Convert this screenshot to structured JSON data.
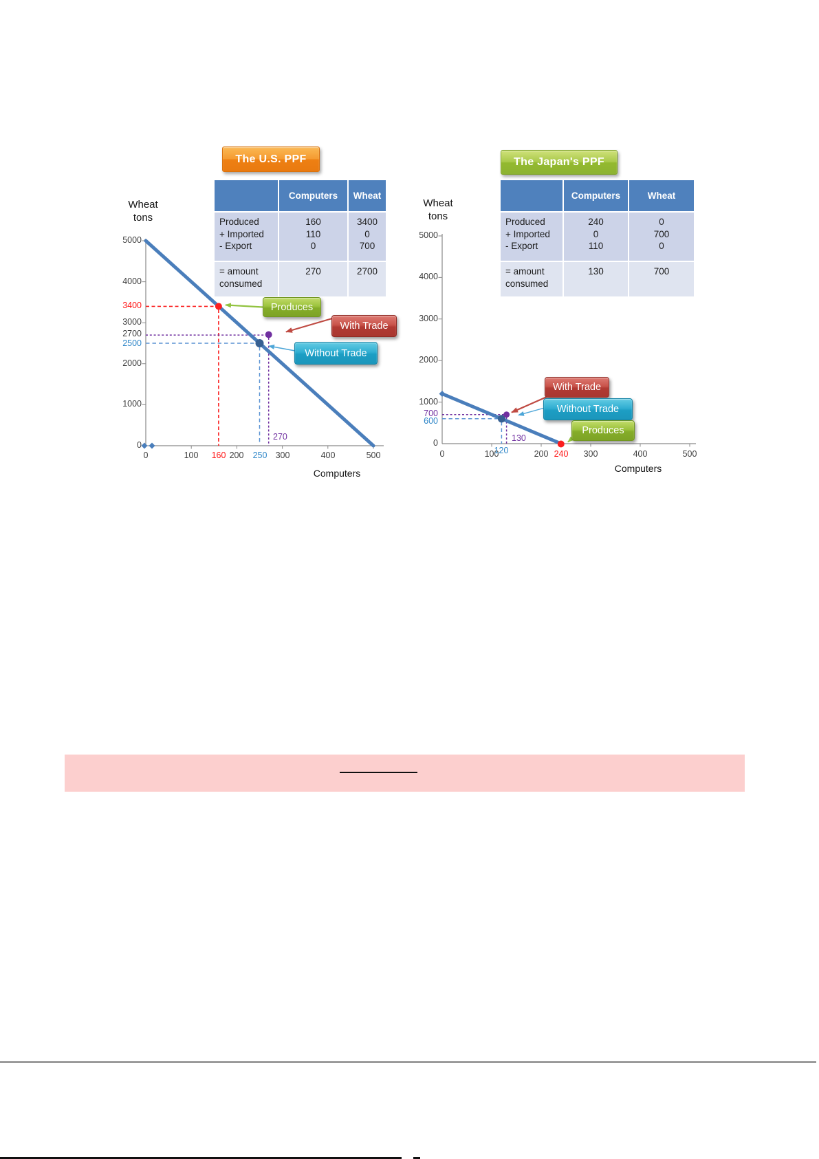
{
  "colors": {
    "ppf_line": "#4a7ebb",
    "table_header_bg": "#4f81bd",
    "table_row1_bg": "#ccd3e8",
    "table_row2_bg": "#dfe4f0",
    "red_accent": "#ff1414",
    "purple_accent": "#7030a0",
    "blue_label": "#2e86c8",
    "us_title_orange": "#ee8013",
    "japan_title_green": "#93b92f",
    "produces_green": "#85ad29",
    "with_trade_red": "#b13a33",
    "without_trade_cyan": "#1d9ec4",
    "highlight_band_pink": "#fccfce"
  },
  "us": {
    "title": "The U.S. PPF",
    "y_axis_title": "Wheat tons",
    "x_axis_title": "Computers",
    "table": {
      "header_computers": "Computers",
      "header_wheat": "Wheat",
      "produced_label": "Produced",
      "imported_label": "+ Imported",
      "export_label": "- Export",
      "produced_computers": "160",
      "imported_computers": "110",
      "export_computers": "0",
      "produced_wheat": "3400",
      "imported_wheat": "0",
      "export_wheat": "700",
      "consumed_label": "= amount consumed",
      "consumed_computers": "270",
      "consumed_wheat": "2700"
    },
    "callouts": {
      "produces": "Produces",
      "with_trade": "With Trade",
      "without_trade": "Without Trade"
    },
    "guide_labels": {
      "with_trade_x": "270"
    },
    "y_ticks": [
      {
        "v": 5000
      },
      {
        "v": 4000
      },
      {
        "v": 3400,
        "c": "red"
      },
      {
        "v": 3000
      },
      {
        "v": 2700,
        "dy": -1
      },
      {
        "v": 2500,
        "c": "blue",
        "dy": 1
      },
      {
        "v": 2000
      },
      {
        "v": 1000
      },
      {
        "v": 0
      }
    ],
    "x_ticks": [
      {
        "v": 0
      },
      {
        "v": 100
      },
      {
        "v": 160,
        "c": "red"
      },
      {
        "v": 200
      },
      {
        "v": 250,
        "c": "blue"
      },
      {
        "v": 300
      },
      {
        "v": 400
      },
      {
        "v": 500
      }
    ]
  },
  "japan": {
    "title": "The Japan's  PPF",
    "y_axis_title": "Wheat tons",
    "x_axis_title": "Computers",
    "table": {
      "header_computers": "Computers",
      "header_wheat": "Wheat",
      "produced_label": "Produced",
      "imported_label": "+ Imported",
      "export_label": "- Export",
      "produced_computers": "240",
      "imported_computers": "0",
      "export_computers": "110",
      "produced_wheat": "0",
      "imported_wheat": "700",
      "export_wheat": "0",
      "consumed_label": "= amount consumed",
      "consumed_computers": "130",
      "consumed_wheat": "700"
    },
    "callouts": {
      "produces": "Produces",
      "with_trade": "With Trade",
      "without_trade": "Without Trade"
    },
    "guide_labels": {
      "without_trade_x": "120",
      "with_trade_x": "130"
    },
    "y_ticks": [
      {
        "v": 5000
      },
      {
        "v": 4000
      },
      {
        "v": 3000
      },
      {
        "v": 2000
      },
      {
        "v": 1000
      },
      {
        "v": 700,
        "c": "purple",
        "dy": -1
      },
      {
        "v": 600,
        "c": "blue",
        "dy": 4
      },
      {
        "v": 0
      }
    ],
    "x_ticks": [
      {
        "v": 0
      },
      {
        "v": 100
      },
      {
        "v": 200
      },
      {
        "v": 240,
        "c": "red"
      },
      {
        "v": 300
      },
      {
        "v": 400
      },
      {
        "v": 500
      }
    ]
  },
  "chart_data": [
    {
      "type": "line",
      "title": "The U.S. PPF",
      "xlabel": "Computers",
      "ylabel": "Wheat tons",
      "xlim": [
        0,
        500
      ],
      "ylim": [
        0,
        5000
      ],
      "grid": false,
      "series": [
        {
          "name": "US PPF frontier",
          "points": [
            [
              0,
              5000
            ],
            [
              500,
              0
            ]
          ]
        }
      ],
      "markers": [
        {
          "name": "Produces",
          "x": 160,
          "y": 3400,
          "color": "red"
        },
        {
          "name": "Without Trade",
          "x": 250,
          "y": 2500,
          "color": "blue"
        },
        {
          "name": "With Trade",
          "x": 270,
          "y": 2700,
          "color": "purple"
        },
        {
          "name": "origin markers",
          "points": [
            [
              0,
              0
            ],
            [
              14,
              0
            ]
          ],
          "color": "blue"
        }
      ],
      "table": {
        "columns": [
          "",
          "Computers",
          "Wheat"
        ],
        "rows": [
          [
            "Produced",
            160,
            3400
          ],
          [
            "+ Imported",
            110,
            0
          ],
          [
            "- Export",
            0,
            700
          ],
          [
            "= amount consumed",
            270,
            2700
          ]
        ]
      }
    },
    {
      "type": "line",
      "title": "The Japan's PPF",
      "xlabel": "Computers",
      "ylabel": "Wheat tons",
      "xlim": [
        0,
        500
      ],
      "ylim": [
        0,
        5000
      ],
      "grid": false,
      "series": [
        {
          "name": "Japan PPF frontier",
          "points": [
            [
              0,
              1200
            ],
            [
              240,
              0
            ]
          ]
        }
      ],
      "markers": [
        {
          "name": "Produces",
          "x": 240,
          "y": 0,
          "color": "red"
        },
        {
          "name": "Without Trade",
          "x": 120,
          "y": 600,
          "color": "blue"
        },
        {
          "name": "With Trade",
          "x": 130,
          "y": 700,
          "color": "purple"
        }
      ],
      "table": {
        "columns": [
          "",
          "Computers",
          "Wheat"
        ],
        "rows": [
          [
            "Produced",
            240,
            0
          ],
          [
            "+ Imported",
            0,
            700
          ],
          [
            "- Export",
            110,
            0
          ],
          [
            "= amount consumed",
            130,
            700
          ]
        ]
      }
    }
  ]
}
